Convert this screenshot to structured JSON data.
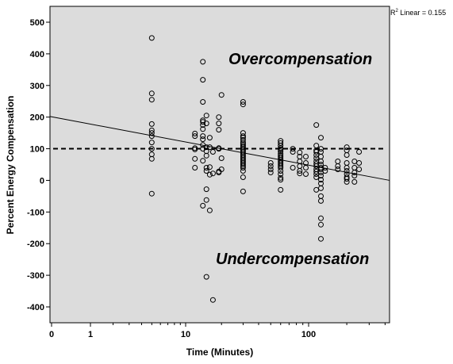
{
  "chart_data": {
    "type": "scatter",
    "xlabel": "Time (Minutes)",
    "ylabel": "Percent Energy Compensation",
    "x_scale": "log",
    "x_ticks": [
      {
        "value": 0,
        "label": "0"
      },
      {
        "value": 1,
        "label": "1"
      },
      {
        "value": 10,
        "label": "10"
      },
      {
        "value": 100,
        "label": "100"
      }
    ],
    "y_ticks": [
      -400,
      -300,
      -200,
      -100,
      0,
      100,
      200,
      300,
      400,
      500
    ],
    "ylim": [
      -440,
      530
    ],
    "xlim": [
      0,
      420
    ],
    "grid": false,
    "fit_line": {
      "label": "R² Linear = 0.155",
      "r2_prefix": "R",
      "r2_sup": "2",
      "r2_text": " Linear = 0.155",
      "points": [
        {
          "x": 0,
          "y": 202
        },
        {
          "x": 420,
          "y": 0
        }
      ]
    },
    "reference_line": {
      "y": 100,
      "style": "dashed"
    },
    "annotations": {
      "over": "Overcompensation",
      "under": "Undercompensation"
    },
    "colors": {
      "plot_background": "#dcdcdc",
      "marker_stroke": "#000000"
    },
    "series": [
      {
        "points": [
          [
            5,
            450
          ],
          [
            5,
            275
          ],
          [
            5,
            255
          ],
          [
            5,
            178
          ],
          [
            5,
            158
          ],
          [
            5,
            150
          ],
          [
            5,
            140
          ],
          [
            5,
            120
          ],
          [
            5,
            100
          ],
          [
            5,
            82
          ],
          [
            5,
            68
          ],
          [
            5,
            -42
          ],
          [
            12,
            148
          ],
          [
            12,
            140
          ],
          [
            12,
            102
          ],
          [
            12,
            98
          ],
          [
            12,
            68
          ],
          [
            12,
            40
          ],
          [
            14,
            375
          ],
          [
            14,
            318
          ],
          [
            14,
            248
          ],
          [
            14,
            190
          ],
          [
            14,
            185
          ],
          [
            14,
            175
          ],
          [
            14,
            162
          ],
          [
            14,
            140
          ],
          [
            14,
            130
          ],
          [
            14,
            112
          ],
          [
            14,
            100
          ],
          [
            14,
            62
          ],
          [
            14,
            -80
          ],
          [
            15,
            205
          ],
          [
            15,
            180
          ],
          [
            15,
            105
          ],
          [
            15,
            92
          ],
          [
            15,
            78
          ],
          [
            15,
            40
          ],
          [
            15,
            30
          ],
          [
            15,
            -28
          ],
          [
            15,
            -62
          ],
          [
            15,
            -305
          ],
          [
            16,
            135
          ],
          [
            16,
            105
          ],
          [
            16,
            42
          ],
          [
            16,
            18
          ],
          [
            16,
            -95
          ],
          [
            17,
            90
          ],
          [
            17,
            22
          ],
          [
            17,
            -378
          ],
          [
            19,
            200
          ],
          [
            19,
            180
          ],
          [
            19,
            160
          ],
          [
            19,
            102
          ],
          [
            19,
            100
          ],
          [
            19,
            28
          ],
          [
            19,
            25
          ],
          [
            20,
            270
          ],
          [
            20,
            70
          ],
          [
            20,
            35
          ],
          [
            30,
            248
          ],
          [
            30,
            240
          ],
          [
            30,
            150
          ],
          [
            30,
            140
          ],
          [
            30,
            135
          ],
          [
            30,
            128
          ],
          [
            30,
            120
          ],
          [
            30,
            115
          ],
          [
            30,
            110
          ],
          [
            30,
            105
          ],
          [
            30,
            100
          ],
          [
            30,
            95
          ],
          [
            30,
            90
          ],
          [
            30,
            85
          ],
          [
            30,
            80
          ],
          [
            30,
            75
          ],
          [
            30,
            70
          ],
          [
            30,
            65
          ],
          [
            30,
            60
          ],
          [
            30,
            55
          ],
          [
            30,
            50
          ],
          [
            30,
            45
          ],
          [
            30,
            40
          ],
          [
            30,
            30
          ],
          [
            30,
            10
          ],
          [
            30,
            -35
          ],
          [
            50,
            55
          ],
          [
            50,
            45
          ],
          [
            50,
            35
          ],
          [
            50,
            25
          ],
          [
            60,
            125
          ],
          [
            60,
            118
          ],
          [
            60,
            110
          ],
          [
            60,
            102
          ],
          [
            60,
            98
          ],
          [
            60,
            92
          ],
          [
            60,
            85
          ],
          [
            60,
            80
          ],
          [
            60,
            75
          ],
          [
            60,
            70
          ],
          [
            60,
            65
          ],
          [
            60,
            60
          ],
          [
            60,
            55
          ],
          [
            60,
            50
          ],
          [
            60,
            45
          ],
          [
            60,
            40
          ],
          [
            60,
            30
          ],
          [
            60,
            20
          ],
          [
            60,
            8
          ],
          [
            60,
            2
          ],
          [
            60,
            -30
          ],
          [
            75,
            100
          ],
          [
            75,
            90
          ],
          [
            75,
            40
          ],
          [
            85,
            88
          ],
          [
            85,
            75
          ],
          [
            85,
            60
          ],
          [
            85,
            45
          ],
          [
            85,
            30
          ],
          [
            85,
            22
          ],
          [
            95,
            75
          ],
          [
            95,
            55
          ],
          [
            95,
            40
          ],
          [
            95,
            20
          ],
          [
            115,
            175
          ],
          [
            115,
            110
          ],
          [
            115,
            95
          ],
          [
            115,
            90
          ],
          [
            115,
            80
          ],
          [
            115,
            70
          ],
          [
            115,
            60
          ],
          [
            115,
            52
          ],
          [
            115,
            45
          ],
          [
            115,
            35
          ],
          [
            115,
            28
          ],
          [
            115,
            20
          ],
          [
            115,
            10
          ],
          [
            115,
            -30
          ],
          [
            125,
            135
          ],
          [
            125,
            100
          ],
          [
            125,
            90
          ],
          [
            125,
            75
          ],
          [
            125,
            60
          ],
          [
            125,
            50
          ],
          [
            125,
            40
          ],
          [
            125,
            35
          ],
          [
            125,
            25
          ],
          [
            125,
            15
          ],
          [
            125,
            2
          ],
          [
            125,
            -10
          ],
          [
            125,
            -25
          ],
          [
            125,
            -50
          ],
          [
            125,
            -65
          ],
          [
            125,
            -120
          ],
          [
            125,
            -140
          ],
          [
            125,
            -185
          ],
          [
            135,
            40
          ],
          [
            135,
            30
          ],
          [
            170,
            60
          ],
          [
            170,
            45
          ],
          [
            170,
            35
          ],
          [
            200,
            105
          ],
          [
            200,
            95
          ],
          [
            200,
            80
          ],
          [
            200,
            55
          ],
          [
            200,
            40
          ],
          [
            200,
            30
          ],
          [
            200,
            20
          ],
          [
            200,
            10
          ],
          [
            200,
            5
          ],
          [
            200,
            -5
          ],
          [
            230,
            60
          ],
          [
            230,
            40
          ],
          [
            230,
            25
          ],
          [
            230,
            15
          ],
          [
            230,
            -5
          ],
          [
            250,
            90
          ],
          [
            250,
            55
          ],
          [
            250,
            35
          ]
        ]
      }
    ]
  }
}
